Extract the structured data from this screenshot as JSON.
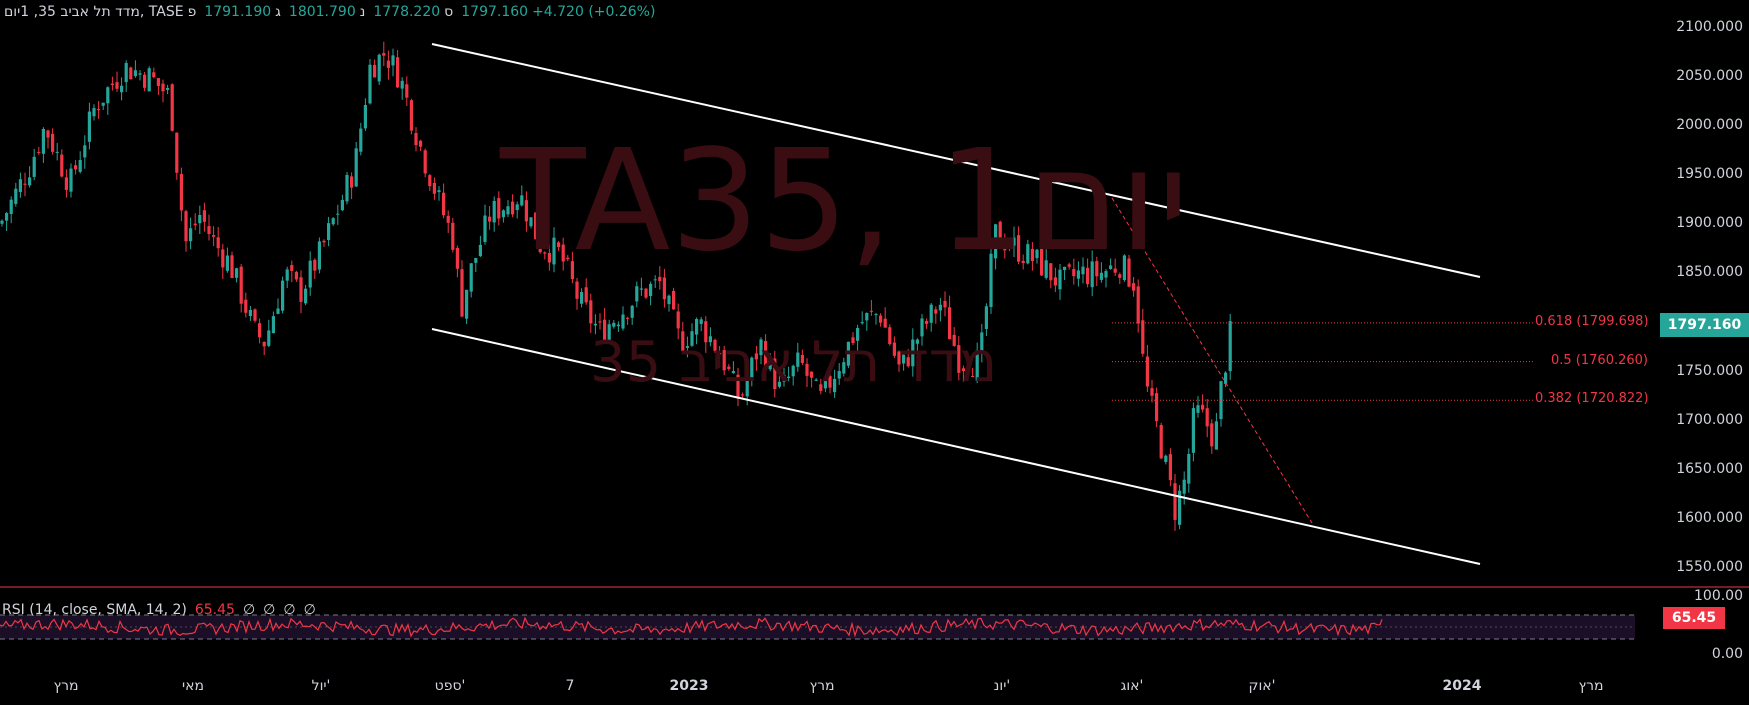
{
  "header": {
    "symbol_title": "מדד תל אביב 35, 1יום, TASE",
    "open_label": "פ",
    "open": "1791.190",
    "high_label": "ג",
    "high": "1801.790",
    "low_label": "נ",
    "low": "1778.220",
    "close_label": "ס",
    "close": "1797.160",
    "change": "+4.720 (+0.26%)"
  },
  "watermark": {
    "line1": "TA35, 1יום",
    "line2": "מדד תל אביב 35"
  },
  "price_axis": {
    "ticks": [
      "2100.000",
      "2050.000",
      "2000.000",
      "1950.000",
      "1900.000",
      "1850.000",
      "1800.000",
      "1750.000",
      "1700.000",
      "1650.000",
      "1600.000",
      "1550.000"
    ],
    "last_price": "1797.160"
  },
  "fib_levels": [
    {
      "label": "0.618 (1799.698)",
      "value": 1799.698
    },
    {
      "label": "0.5 (1760.260)",
      "value": 1760.26
    },
    {
      "label": "0.382 (1720.822)",
      "value": 1720.822
    }
  ],
  "rsi": {
    "name": "RSI (14, close, SMA, 14, 2)",
    "value": "65.45",
    "na": [
      "∅",
      "∅",
      "∅",
      "∅"
    ],
    "axis_top": "100.00",
    "axis_bottom": "0.00"
  },
  "time_axis": {
    "labels": [
      "מרץ",
      "מאי",
      "יול'",
      "ספט'",
      "7",
      "2023",
      "מרץ",
      "יונ'",
      "אוג'",
      "אוק'",
      "2024",
      "מרץ"
    ],
    "bold": [
      "2023",
      "2024"
    ]
  },
  "colors": {
    "up": "#26a69a",
    "down": "#f23645",
    "channel": "#ffffff",
    "rsi_line": "#f23645"
  },
  "chart_data": {
    "type": "candlestick",
    "title": "מדד תל אביב 35, 1יום, TASE",
    "ylim": [
      1530,
      2110
    ],
    "series": [
      {
        "name": "TA35",
        "approx_close_path": [
          [
            0,
            1900
          ],
          [
            30,
            1960
          ],
          [
            45,
            2000
          ],
          [
            70,
            1940
          ],
          [
            95,
            2020
          ],
          [
            125,
            2060
          ],
          [
            150,
            2050
          ],
          [
            170,
            2030
          ],
          [
            185,
            1880
          ],
          [
            200,
            1910
          ],
          [
            215,
            1880
          ],
          [
            230,
            1860
          ],
          [
            255,
            1790
          ],
          [
            265,
            1780
          ],
          [
            285,
            1850
          ],
          [
            300,
            1830
          ],
          [
            320,
            1870
          ],
          [
            340,
            1920
          ],
          [
            355,
            1960
          ],
          [
            370,
            2060
          ],
          [
            385,
            2075
          ],
          [
            400,
            2050
          ],
          [
            420,
            1980
          ],
          [
            440,
            1920
          ],
          [
            455,
            1880
          ],
          [
            460,
            1810
          ],
          [
            470,
            1850
          ],
          [
            490,
            1910
          ],
          [
            520,
            1930
          ],
          [
            540,
            1880
          ],
          [
            560,
            1870
          ],
          [
            580,
            1820
          ],
          [
            600,
            1790
          ],
          [
            620,
            1810
          ],
          [
            640,
            1830
          ],
          [
            660,
            1840
          ],
          [
            680,
            1780
          ],
          [
            700,
            1800
          ],
          [
            720,
            1770
          ],
          [
            740,
            1720
          ],
          [
            760,
            1780
          ],
          [
            780,
            1730
          ],
          [
            800,
            1760
          ],
          [
            820,
            1720
          ],
          [
            840,
            1760
          ],
          [
            860,
            1800
          ],
          [
            880,
            1810
          ],
          [
            900,
            1750
          ],
          [
            920,
            1790
          ],
          [
            940,
            1820
          ],
          [
            960,
            1760
          ],
          [
            980,
            1760
          ],
          [
            995,
            1890
          ],
          [
            1010,
            1880
          ],
          [
            1025,
            1870
          ],
          [
            1040,
            1860
          ],
          [
            1060,
            1840
          ],
          [
            1080,
            1850
          ],
          [
            1100,
            1850
          ],
          [
            1120,
            1860
          ],
          [
            1135,
            1840
          ],
          [
            1145,
            1740
          ],
          [
            1160,
            1680
          ],
          [
            1175,
            1610
          ],
          [
            1185,
            1640
          ],
          [
            1195,
            1710
          ],
          [
            1205,
            1700
          ],
          [
            1215,
            1680
          ],
          [
            1222,
            1740
          ],
          [
            1232,
            1797.16
          ]
        ]
      }
    ],
    "channel_lines": [
      {
        "from": [
          "ספט'",
          2080
        ],
        "to": [
          "2024",
          1845
        ]
      },
      {
        "from": [
          "ספט'",
          1795
        ],
        "to": [
          "2024",
          1555
        ]
      }
    ],
    "rsi_last": 65.45
  }
}
